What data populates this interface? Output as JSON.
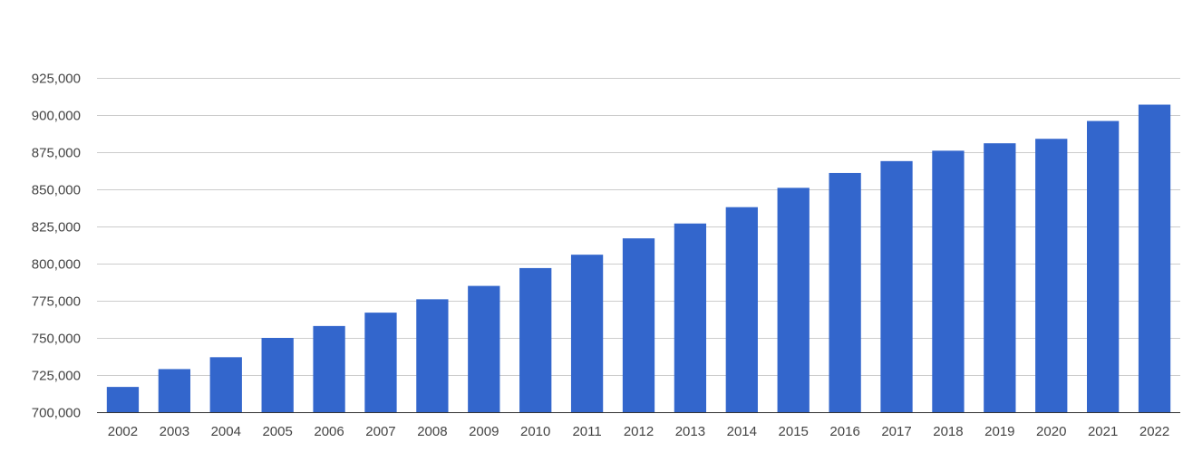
{
  "chart_data": {
    "type": "bar",
    "title": "",
    "xlabel": "",
    "ylabel": "",
    "grid": true,
    "legend": "none",
    "bar_color": "#3366cc",
    "ylim": [
      700000,
      925000
    ],
    "y_ticks": [
      700000,
      725000,
      750000,
      775000,
      800000,
      825000,
      850000,
      875000,
      900000,
      925000
    ],
    "y_tick_labels": [
      "700,000",
      "725,000",
      "750,000",
      "775,000",
      "800,000",
      "825,000",
      "850,000",
      "875,000",
      "900,000",
      "925,000"
    ],
    "categories": [
      "2002",
      "2003",
      "2004",
      "2005",
      "2006",
      "2007",
      "2008",
      "2009",
      "2010",
      "2011",
      "2012",
      "2013",
      "2014",
      "2015",
      "2016",
      "2017",
      "2018",
      "2019",
      "2020",
      "2021",
      "2022"
    ],
    "values": [
      717000,
      729000,
      737000,
      750000,
      758000,
      767000,
      776000,
      785000,
      797000,
      806000,
      817000,
      827000,
      838000,
      851000,
      861000,
      869000,
      876000,
      881000,
      884000,
      896000,
      907000
    ]
  }
}
